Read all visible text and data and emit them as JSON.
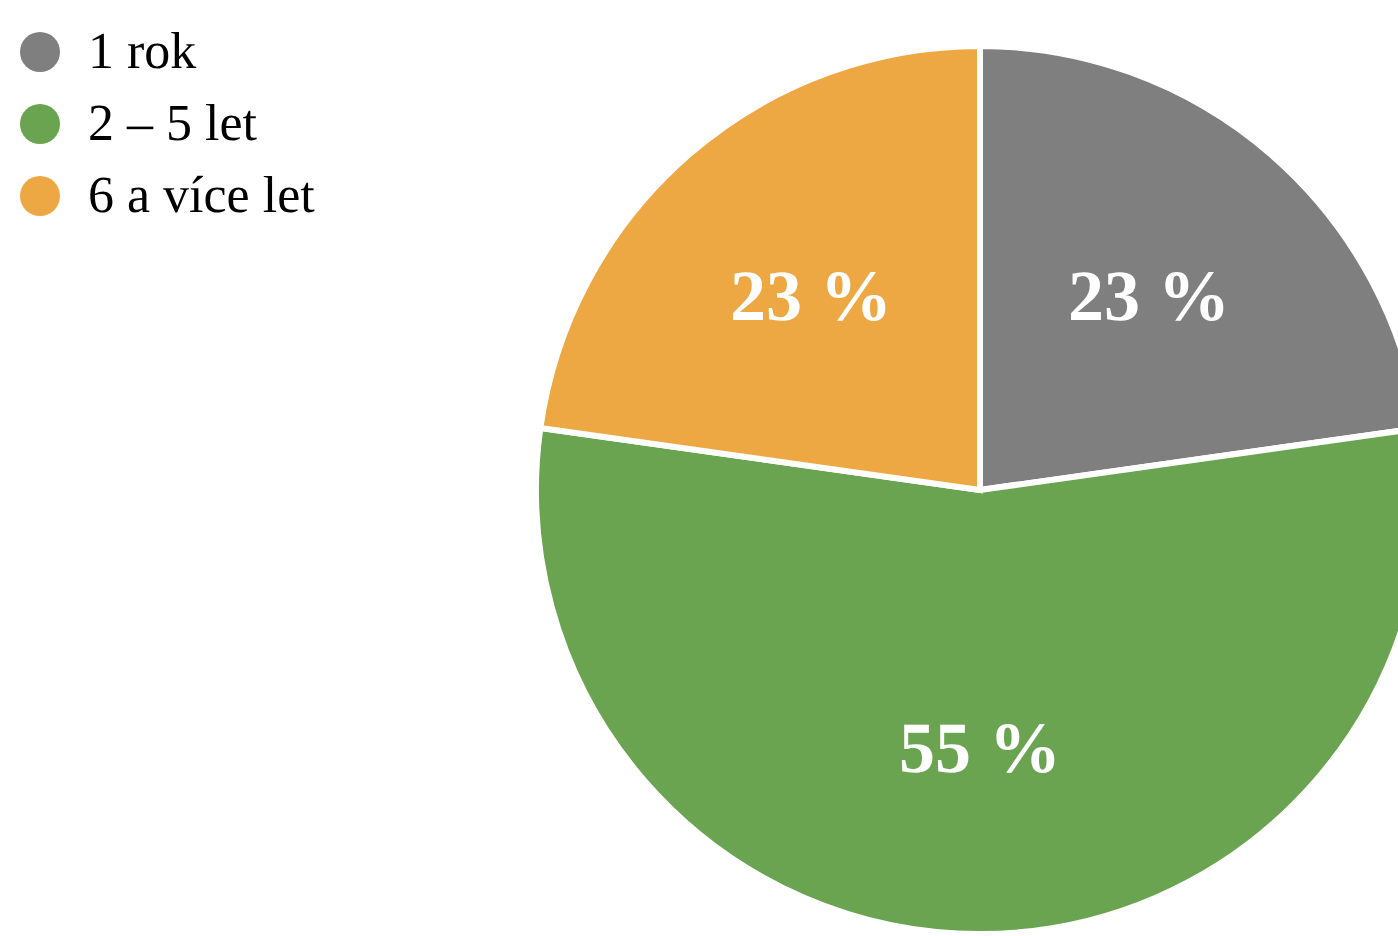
{
  "chart_data": {
    "type": "pie",
    "categories": [
      "1 rok",
      "2 – 5 let",
      "6 a více let"
    ],
    "values": [
      23,
      55,
      23
    ],
    "colors": [
      "#7f7f7f",
      "#6aa450",
      "#eea843"
    ],
    "value_labels": [
      "23 %",
      "55 %",
      "23 %"
    ],
    "legend": "top left"
  }
}
